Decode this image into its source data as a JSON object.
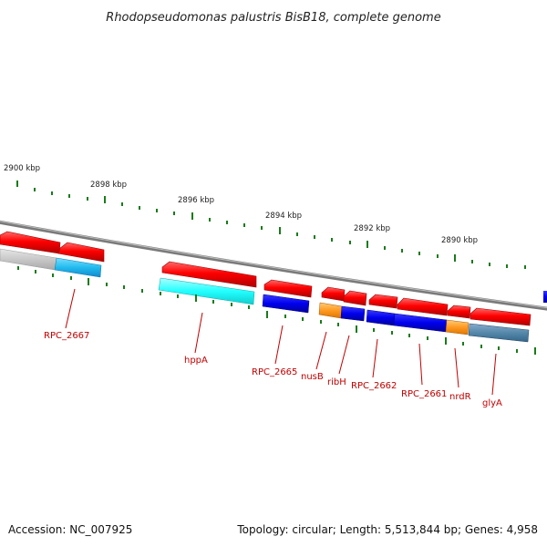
{
  "title": "Rhodopseudomonas palustris BisB18, complete genome",
  "kbp_labels": [
    "2900 kbp",
    "2898 kbp",
    "2896 kbp",
    "2894 kbp",
    "2892 kbp",
    "2890 kbp"
  ],
  "gene_labels": [
    "RPC_2667",
    "hppA",
    "RPC_2665",
    "nusB",
    "ribH",
    "RPC_2662",
    "RPC_2661",
    "nrdR",
    "glyA"
  ],
  "colors": {
    "forward_gene": "#ee0000",
    "backbone": "#888888",
    "tick": "#1a7a1a",
    "label": "#c00000",
    "cds_grey": "#c8c8c8",
    "cds_light_blue": "#22bbee",
    "cds_cyan": "#22ffff",
    "cds_blue": "#0000ee",
    "cds_orange": "#ff9922",
    "cds_steel": "#5588aa"
  },
  "footer": {
    "accession": "Accession: NC_007925",
    "topology": "Topology: circular; Length: 5,513,844 bp; Genes: 4,958"
  }
}
